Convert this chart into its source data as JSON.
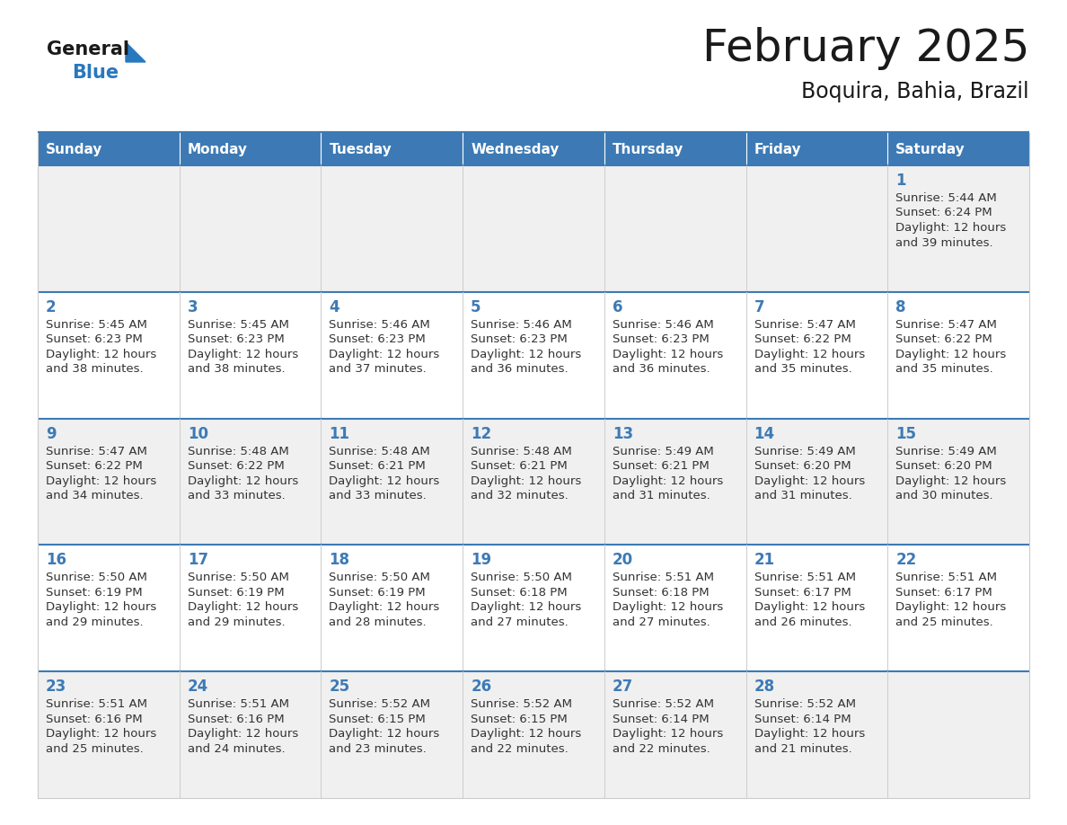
{
  "title": "February 2025",
  "subtitle": "Boquira, Bahia, Brazil",
  "header_color": "#3d7ab5",
  "header_text_color": "#ffffff",
  "cell_bg_row0": "#f0f0f0",
  "cell_bg_row1": "#ffffff",
  "cell_bg_row2": "#f0f0f0",
  "cell_bg_row3": "#ffffff",
  "cell_bg_row4": "#f0f0f0",
  "day_names": [
    "Sunday",
    "Monday",
    "Tuesday",
    "Wednesday",
    "Thursday",
    "Friday",
    "Saturday"
  ],
  "title_color": "#1a1a1a",
  "subtitle_color": "#1a1a1a",
  "day_number_color": "#3d7ab5",
  "info_text_color": "#333333",
  "border_color": "#3d7ab5",
  "cell_border_color": "#cccccc",
  "logo_general_color": "#1a1a1a",
  "logo_blue_color": "#2878be",
  "calendar_data": [
    [
      null,
      null,
      null,
      null,
      null,
      null,
      {
        "day": 1,
        "sunrise": "5:44 AM",
        "sunset": "6:24 PM",
        "daylight_line1": "12 hours",
        "daylight_line2": "and 39 minutes."
      }
    ],
    [
      {
        "day": 2,
        "sunrise": "5:45 AM",
        "sunset": "6:23 PM",
        "daylight_line1": "12 hours",
        "daylight_line2": "and 38 minutes."
      },
      {
        "day": 3,
        "sunrise": "5:45 AM",
        "sunset": "6:23 PM",
        "daylight_line1": "12 hours",
        "daylight_line2": "and 38 minutes."
      },
      {
        "day": 4,
        "sunrise": "5:46 AM",
        "sunset": "6:23 PM",
        "daylight_line1": "12 hours",
        "daylight_line2": "and 37 minutes."
      },
      {
        "day": 5,
        "sunrise": "5:46 AM",
        "sunset": "6:23 PM",
        "daylight_line1": "12 hours",
        "daylight_line2": "and 36 minutes."
      },
      {
        "day": 6,
        "sunrise": "5:46 AM",
        "sunset": "6:23 PM",
        "daylight_line1": "12 hours",
        "daylight_line2": "and 36 minutes."
      },
      {
        "day": 7,
        "sunrise": "5:47 AM",
        "sunset": "6:22 PM",
        "daylight_line1": "12 hours",
        "daylight_line2": "and 35 minutes."
      },
      {
        "day": 8,
        "sunrise": "5:47 AM",
        "sunset": "6:22 PM",
        "daylight_line1": "12 hours",
        "daylight_line2": "and 35 minutes."
      }
    ],
    [
      {
        "day": 9,
        "sunrise": "5:47 AM",
        "sunset": "6:22 PM",
        "daylight_line1": "12 hours",
        "daylight_line2": "and 34 minutes."
      },
      {
        "day": 10,
        "sunrise": "5:48 AM",
        "sunset": "6:22 PM",
        "daylight_line1": "12 hours",
        "daylight_line2": "and 33 minutes."
      },
      {
        "day": 11,
        "sunrise": "5:48 AM",
        "sunset": "6:21 PM",
        "daylight_line1": "12 hours",
        "daylight_line2": "and 33 minutes."
      },
      {
        "day": 12,
        "sunrise": "5:48 AM",
        "sunset": "6:21 PM",
        "daylight_line1": "12 hours",
        "daylight_line2": "and 32 minutes."
      },
      {
        "day": 13,
        "sunrise": "5:49 AM",
        "sunset": "6:21 PM",
        "daylight_line1": "12 hours",
        "daylight_line2": "and 31 minutes."
      },
      {
        "day": 14,
        "sunrise": "5:49 AM",
        "sunset": "6:20 PM",
        "daylight_line1": "12 hours",
        "daylight_line2": "and 31 minutes."
      },
      {
        "day": 15,
        "sunrise": "5:49 AM",
        "sunset": "6:20 PM",
        "daylight_line1": "12 hours",
        "daylight_line2": "and 30 minutes."
      }
    ],
    [
      {
        "day": 16,
        "sunrise": "5:50 AM",
        "sunset": "6:19 PM",
        "daylight_line1": "12 hours",
        "daylight_line2": "and 29 minutes."
      },
      {
        "day": 17,
        "sunrise": "5:50 AM",
        "sunset": "6:19 PM",
        "daylight_line1": "12 hours",
        "daylight_line2": "and 29 minutes."
      },
      {
        "day": 18,
        "sunrise": "5:50 AM",
        "sunset": "6:19 PM",
        "daylight_line1": "12 hours",
        "daylight_line2": "and 28 minutes."
      },
      {
        "day": 19,
        "sunrise": "5:50 AM",
        "sunset": "6:18 PM",
        "daylight_line1": "12 hours",
        "daylight_line2": "and 27 minutes."
      },
      {
        "day": 20,
        "sunrise": "5:51 AM",
        "sunset": "6:18 PM",
        "daylight_line1": "12 hours",
        "daylight_line2": "and 27 minutes."
      },
      {
        "day": 21,
        "sunrise": "5:51 AM",
        "sunset": "6:17 PM",
        "daylight_line1": "12 hours",
        "daylight_line2": "and 26 minutes."
      },
      {
        "day": 22,
        "sunrise": "5:51 AM",
        "sunset": "6:17 PM",
        "daylight_line1": "12 hours",
        "daylight_line2": "and 25 minutes."
      }
    ],
    [
      {
        "day": 23,
        "sunrise": "5:51 AM",
        "sunset": "6:16 PM",
        "daylight_line1": "12 hours",
        "daylight_line2": "and 25 minutes."
      },
      {
        "day": 24,
        "sunrise": "5:51 AM",
        "sunset": "6:16 PM",
        "daylight_line1": "12 hours",
        "daylight_line2": "and 24 minutes."
      },
      {
        "day": 25,
        "sunrise": "5:52 AM",
        "sunset": "6:15 PM",
        "daylight_line1": "12 hours",
        "daylight_line2": "and 23 minutes."
      },
      {
        "day": 26,
        "sunrise": "5:52 AM",
        "sunset": "6:15 PM",
        "daylight_line1": "12 hours",
        "daylight_line2": "and 22 minutes."
      },
      {
        "day": 27,
        "sunrise": "5:52 AM",
        "sunset": "6:14 PM",
        "daylight_line1": "12 hours",
        "daylight_line2": "and 22 minutes."
      },
      {
        "day": 28,
        "sunrise": "5:52 AM",
        "sunset": "6:14 PM",
        "daylight_line1": "12 hours",
        "daylight_line2": "and 21 minutes."
      },
      null
    ]
  ]
}
